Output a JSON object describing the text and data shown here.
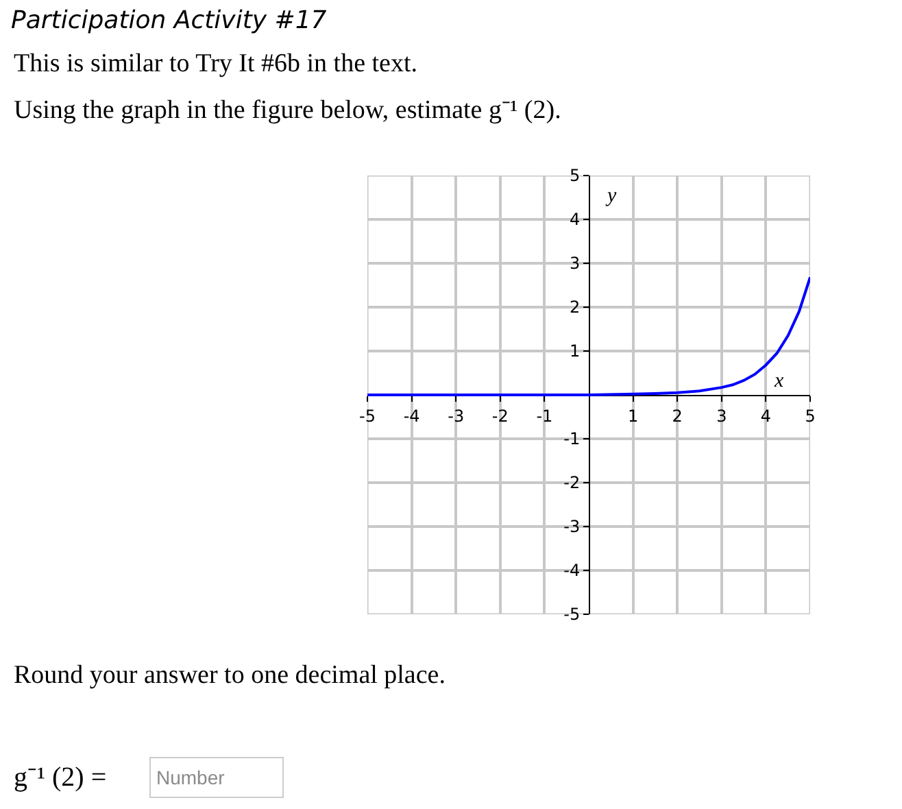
{
  "chart_data": {
    "type": "line",
    "title": "Participation Activity #17",
    "subtitle": "This is similar to Try It #6b in the text.",
    "xlabel": "x",
    "ylabel": "y",
    "annotations": [
      "Using the graph in the figure below, estimate g⁻¹ (2).",
      "Round your answer to one decimal place.",
      "g⁻¹ (2) =",
      "Number"
    ],
    "x": [
      -5,
      -4,
      -3,
      -2,
      -1,
      0,
      1,
      1.5,
      2,
      2.5,
      3,
      3.25,
      3.5,
      3.75,
      4,
      4.25,
      4.5,
      4.75,
      5
    ],
    "series": [
      {
        "color": "#0000ff",
        "values": [
          0,
          0,
          0,
          0,
          0,
          0,
          0.02,
          0.03,
          0.05,
          0.09,
          0.17,
          0.23,
          0.33,
          0.47,
          0.68,
          0.95,
          1.35,
          1.9,
          2.68
        ]
      }
    ],
    "xlim": [
      -5,
      5
    ],
    "ylim": [
      -5,
      5
    ],
    "xticks": [
      -5,
      -4,
      -3,
      -2,
      -1,
      1,
      2,
      3,
      4,
      5
    ],
    "yticks": [
      -5,
      -4,
      -3,
      -2,
      -1,
      1,
      2,
      3,
      4,
      5
    ],
    "grid": true
  }
}
